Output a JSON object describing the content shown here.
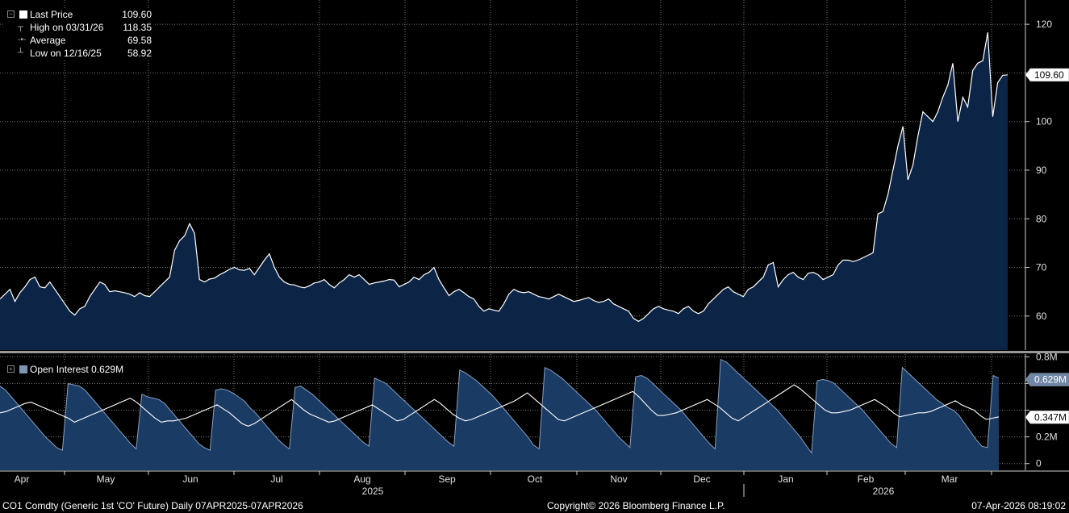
{
  "legend": {
    "last_label": "Last Price",
    "last_value": "109.60",
    "high_label": "High on 03/31/26",
    "high_value": "118.35",
    "avg_label": "Average",
    "avg_value": "69.58",
    "low_label": "Low on 12/16/25",
    "low_value": "58.92"
  },
  "oi_legend": {
    "label": "Open Interest",
    "value": "0.629M"
  },
  "footer": {
    "left": "CO1 Comdty (Generic 1st 'CO' Future) Daily 07APR2025-07APR2026",
    "center": "Copyright© 2026 Bloomberg Finance L.P.",
    "right": "07-Apr-2026 08:19:02"
  },
  "colors": {
    "background": "#000000",
    "line": "#ffffff",
    "area_fill": "#0c2547",
    "oi_fill": "#1a3b64",
    "grid": "#7a7a7a",
    "tag_bg": "#6f86a6"
  },
  "chart_data": [
    {
      "type": "area",
      "series_label": "Last Price",
      "ylim": [
        53,
        125
      ],
      "y_ticks": [
        60,
        70,
        80,
        90,
        100,
        110,
        120
      ],
      "y_tick_labels": [
        "60",
        "70",
        "80",
        "90",
        "100",
        "",
        "120"
      ],
      "last_value_label": "109.60",
      "last_value": 109.6,
      "grid": true,
      "x_labels": [
        "Apr",
        "May",
        "Jun",
        "Jul",
        "Aug",
        "Sep",
        "Oct",
        "Nov",
        "Dec",
        "Jan",
        "Feb",
        "Mar"
      ],
      "year_labels": [
        "2025",
        "2026"
      ],
      "values": [
        63.5,
        64.5,
        65.5,
        63.0,
        64.8,
        66.0,
        67.5,
        68.0,
        66.0,
        65.8,
        67.0,
        65.5,
        64.0,
        62.5,
        61.0,
        60.2,
        61.5,
        62.0,
        64.0,
        65.5,
        67.0,
        66.5,
        65.0,
        65.2,
        65.0,
        64.8,
        64.5,
        64.0,
        64.8,
        64.2,
        64.0,
        65.0,
        66.0,
        67.0,
        68.0,
        73.5,
        75.5,
        76.5,
        79.0,
        77.0,
        67.5,
        67.0,
        67.6,
        67.8,
        68.5,
        69.0,
        69.6,
        70.0,
        69.5,
        69.4,
        69.8,
        68.5,
        70.0,
        71.5,
        72.8,
        70.0,
        68.0,
        67.0,
        66.5,
        66.4,
        66.0,
        65.8,
        66.2,
        66.8,
        67.0,
        67.5,
        66.5,
        65.8,
        66.8,
        67.5,
        68.5,
        68.0,
        68.5,
        67.5,
        66.5,
        66.8,
        67.0,
        67.2,
        67.5,
        67.4,
        66.0,
        66.5,
        67.0,
        68.0,
        67.5,
        68.5,
        69.0,
        70.0,
        67.5,
        65.8,
        64.2,
        65.0,
        65.5,
        64.8,
        64.0,
        63.5,
        62.0,
        61.0,
        61.5,
        61.2,
        61.0,
        62.5,
        64.5,
        65.5,
        65.0,
        64.8,
        65.0,
        64.5,
        64.0,
        63.8,
        63.5,
        64.0,
        64.5,
        64.0,
        63.5,
        63.0,
        63.2,
        63.5,
        63.8,
        63.2,
        62.8,
        63.0,
        63.5,
        62.5,
        62.0,
        61.5,
        61.0,
        59.5,
        58.9,
        59.5,
        60.5,
        61.5,
        62.0,
        61.5,
        61.2,
        61.0,
        60.5,
        61.5,
        62.0,
        61.0,
        60.5,
        61.0,
        62.5,
        63.5,
        64.5,
        65.5,
        66.0,
        65.0,
        64.5,
        64.0,
        65.5,
        66.0,
        67.0,
        68.0,
        70.5,
        71.0,
        66.0,
        67.5,
        68.5,
        69.0,
        68.0,
        67.5,
        68.8,
        69.0,
        68.5,
        67.5,
        68.0,
        68.5,
        70.5,
        71.5,
        71.5,
        71.2,
        71.5,
        72.0,
        72.5,
        73.0,
        81.0,
        81.5,
        85.0,
        90.0,
        95.0,
        99.0,
        88.0,
        91.0,
        97.0,
        102.0,
        101.0,
        100.0,
        102.0,
        105.0,
        107.5,
        112.0,
        100.0,
        105.0,
        103.0,
        110.5,
        112.0,
        112.5,
        118.35,
        101.0,
        108.0,
        109.5,
        109.6
      ]
    },
    {
      "type": "line+area",
      "series_label": "Open Interest",
      "ylim": [
        -0.05,
        0.82
      ],
      "y_ticks": [
        0,
        0.2,
        0.4,
        0.6,
        0.8
      ],
      "y_tick_labels": [
        "0",
        "0.2M",
        "",
        "",
        "0.8M"
      ],
      "last_value_label": "0.629M",
      "last_value": 0.629,
      "secondary_value_label": "0.347M",
      "secondary_value": 0.347,
      "bar_values": [
        0.58,
        0.55,
        0.5,
        0.45,
        0.4,
        0.35,
        0.3,
        0.25,
        0.2,
        0.16,
        0.12,
        0.1,
        0.6,
        0.59,
        0.58,
        0.55,
        0.5,
        0.45,
        0.4,
        0.35,
        0.3,
        0.25,
        0.2,
        0.15,
        0.11,
        0.52,
        0.5,
        0.49,
        0.48,
        0.45,
        0.4,
        0.35,
        0.3,
        0.25,
        0.2,
        0.15,
        0.12,
        0.1,
        0.55,
        0.56,
        0.55,
        0.53,
        0.5,
        0.47,
        0.42,
        0.38,
        0.33,
        0.28,
        0.23,
        0.18,
        0.14,
        0.11,
        0.57,
        0.58,
        0.55,
        0.52,
        0.48,
        0.44,
        0.4,
        0.36,
        0.32,
        0.28,
        0.24,
        0.2,
        0.16,
        0.13,
        0.64,
        0.62,
        0.6,
        0.56,
        0.52,
        0.48,
        0.44,
        0.4,
        0.36,
        0.32,
        0.28,
        0.24,
        0.2,
        0.16,
        0.13,
        0.7,
        0.68,
        0.65,
        0.62,
        0.58,
        0.54,
        0.5,
        0.45,
        0.4,
        0.35,
        0.3,
        0.25,
        0.2,
        0.14,
        0.11,
        0.72,
        0.7,
        0.67,
        0.64,
        0.6,
        0.56,
        0.52,
        0.48,
        0.44,
        0.4,
        0.35,
        0.3,
        0.25,
        0.2,
        0.16,
        0.12,
        0.65,
        0.66,
        0.64,
        0.6,
        0.56,
        0.52,
        0.48,
        0.44,
        0.4,
        0.35,
        0.3,
        0.25,
        0.2,
        0.15,
        0.11,
        0.78,
        0.76,
        0.72,
        0.68,
        0.64,
        0.6,
        0.56,
        0.52,
        0.48,
        0.44,
        0.4,
        0.35,
        0.3,
        0.25,
        0.2,
        0.14,
        0.08,
        0.62,
        0.63,
        0.62,
        0.6,
        0.56,
        0.52,
        0.48,
        0.44,
        0.4,
        0.35,
        0.3,
        0.25,
        0.2,
        0.15,
        0.12,
        0.72,
        0.68,
        0.64,
        0.6,
        0.56,
        0.52,
        0.48,
        0.45,
        0.42,
        0.4,
        0.36,
        0.3,
        0.24,
        0.18,
        0.13,
        0.12,
        0.66,
        0.64
      ],
      "line_values": [
        0.38,
        0.39,
        0.41,
        0.43,
        0.45,
        0.46,
        0.44,
        0.42,
        0.4,
        0.38,
        0.36,
        0.34,
        0.31,
        0.33,
        0.35,
        0.37,
        0.39,
        0.41,
        0.43,
        0.45,
        0.47,
        0.49,
        0.46,
        0.42,
        0.38,
        0.34,
        0.31,
        0.32,
        0.32,
        0.33,
        0.34,
        0.36,
        0.38,
        0.4,
        0.42,
        0.44,
        0.41,
        0.38,
        0.34,
        0.3,
        0.28,
        0.3,
        0.33,
        0.36,
        0.39,
        0.42,
        0.45,
        0.48,
        0.44,
        0.4,
        0.37,
        0.35,
        0.33,
        0.31,
        0.32,
        0.34,
        0.36,
        0.38,
        0.4,
        0.42,
        0.44,
        0.41,
        0.38,
        0.35,
        0.32,
        0.33,
        0.36,
        0.39,
        0.42,
        0.45,
        0.48,
        0.45,
        0.41,
        0.37,
        0.34,
        0.32,
        0.33,
        0.35,
        0.37,
        0.39,
        0.41,
        0.43,
        0.45,
        0.47,
        0.5,
        0.53,
        0.49,
        0.45,
        0.41,
        0.37,
        0.33,
        0.32,
        0.34,
        0.36,
        0.38,
        0.4,
        0.42,
        0.44,
        0.46,
        0.48,
        0.5,
        0.52,
        0.54,
        0.5,
        0.45,
        0.4,
        0.36,
        0.36,
        0.37,
        0.38,
        0.4,
        0.42,
        0.44,
        0.46,
        0.48,
        0.45,
        0.42,
        0.38,
        0.34,
        0.32,
        0.35,
        0.38,
        0.41,
        0.44,
        0.47,
        0.5,
        0.53,
        0.56,
        0.59,
        0.56,
        0.52,
        0.48,
        0.44,
        0.4,
        0.38,
        0.38,
        0.39,
        0.4,
        0.42,
        0.44,
        0.46,
        0.48,
        0.45,
        0.42,
        0.38,
        0.35,
        0.36,
        0.37,
        0.38,
        0.38,
        0.39,
        0.41,
        0.43,
        0.45,
        0.47,
        0.44,
        0.42,
        0.4,
        0.36,
        0.33,
        0.34,
        0.35
      ]
    }
  ]
}
